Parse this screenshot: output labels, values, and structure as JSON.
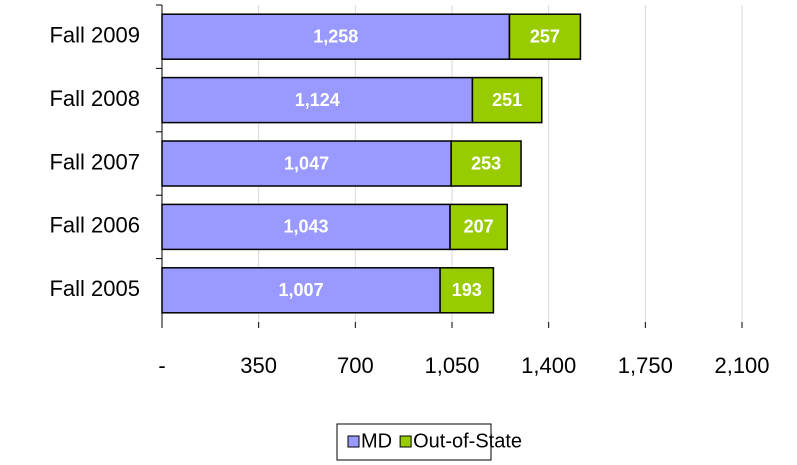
{
  "chart_data": {
    "type": "bar",
    "orientation": "horizontal",
    "stacked": true,
    "categories": [
      "Fall 2009",
      "Fall 2008",
      "Fall 2007",
      "Fall 2006",
      "Fall 2005"
    ],
    "series": [
      {
        "name": "MD",
        "color": "#9999ff",
        "values": [
          1258,
          1124,
          1047,
          1043,
          1007
        ],
        "value_labels": [
          "1,258",
          "1,124",
          "1,047",
          "1,043",
          "1,007"
        ]
      },
      {
        "name": "Out-of-State",
        "color": "#99cc00",
        "values": [
          257,
          251,
          253,
          207,
          193
        ]
      }
    ],
    "xlim": [
      0,
      2100
    ],
    "xticks": [
      {
        "value": 0,
        "label": "-"
      },
      350,
      700,
      {
        "value": 1050,
        "label": "1,050"
      },
      {
        "value": 1400,
        "label": "1,400"
      },
      {
        "value": 1750,
        "label": "1,750"
      },
      {
        "value": 2100,
        "label": "2,100"
      }
    ],
    "grid": true,
    "legend": "bottom"
  }
}
